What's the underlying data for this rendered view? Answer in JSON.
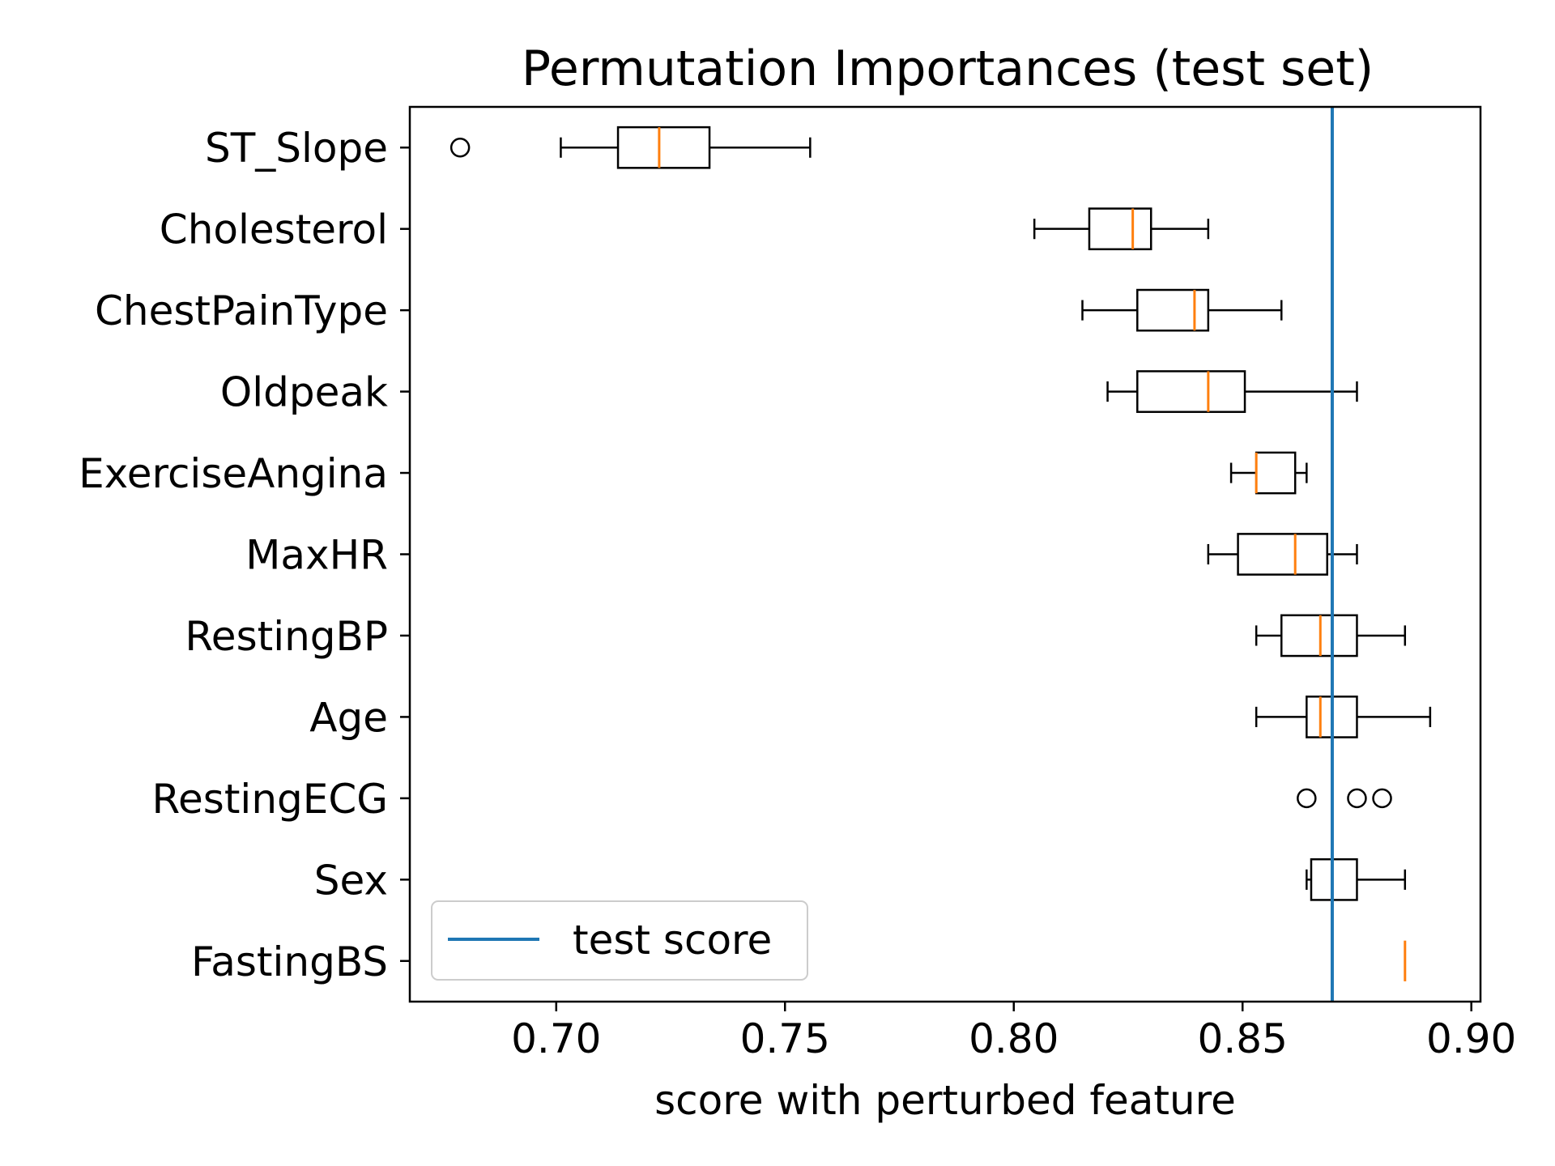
{
  "chart_data": {
    "type": "boxplot",
    "title": "Permutation Importances (test set)",
    "xlabel": "score with perturbed feature",
    "ylabel": "",
    "xlim": [
      0.668,
      0.902
    ],
    "xticks": [
      "0.70",
      "0.75",
      "0.80",
      "0.85",
      "0.90"
    ],
    "xtick_values": [
      0.7,
      0.75,
      0.8,
      0.85,
      0.9
    ],
    "grid": false,
    "legend": {
      "position": "lower-left",
      "entries": [
        "test score"
      ]
    },
    "reference_line": {
      "label": "test score",
      "value": 0.8696,
      "color": "#1f77b4"
    },
    "box_color": "#000000",
    "median_color": "#ff7f0e",
    "features": [
      {
        "name": "ST_Slope",
        "whisker_low": 0.701,
        "q1": 0.7135,
        "median": 0.7225,
        "q3": 0.7335,
        "whisker_high": 0.7555,
        "outliers": [
          0.679
        ]
      },
      {
        "name": "Cholesterol",
        "whisker_low": 0.8045,
        "q1": 0.8165,
        "median": 0.826,
        "q3": 0.83,
        "whisker_high": 0.8425,
        "outliers": []
      },
      {
        "name": "ChestPainType",
        "whisker_low": 0.815,
        "q1": 0.827,
        "median": 0.8395,
        "q3": 0.8425,
        "whisker_high": 0.8585,
        "outliers": []
      },
      {
        "name": "Oldpeak",
        "whisker_low": 0.8205,
        "q1": 0.827,
        "median": 0.8425,
        "q3": 0.8505,
        "whisker_high": 0.875,
        "outliers": []
      },
      {
        "name": "ExerciseAngina",
        "whisker_low": 0.8475,
        "q1": 0.853,
        "median": 0.853,
        "q3": 0.8615,
        "whisker_high": 0.864,
        "outliers": []
      },
      {
        "name": "MaxHR",
        "whisker_low": 0.8425,
        "q1": 0.849,
        "median": 0.8615,
        "q3": 0.8685,
        "whisker_high": 0.875,
        "outliers": []
      },
      {
        "name": "RestingBP",
        "whisker_low": 0.853,
        "q1": 0.8585,
        "median": 0.867,
        "q3": 0.875,
        "whisker_high": 0.8855,
        "outliers": []
      },
      {
        "name": "Age",
        "whisker_low": 0.853,
        "q1": 0.864,
        "median": 0.867,
        "q3": 0.875,
        "whisker_high": 0.891,
        "outliers": []
      },
      {
        "name": "RestingECG",
        "whisker_low": 0.8696,
        "q1": 0.8696,
        "median": 0.8696,
        "q3": 0.8696,
        "whisker_high": 0.8696,
        "outliers": [
          0.864,
          0.875,
          0.8805
        ]
      },
      {
        "name": "Sex",
        "whisker_low": 0.864,
        "q1": 0.865,
        "median": 0.8696,
        "q3": 0.875,
        "whisker_high": 0.8855,
        "outliers": []
      },
      {
        "name": "FastingBS",
        "whisker_low": 0.8855,
        "q1": 0.8855,
        "median": 0.8855,
        "q3": 0.8855,
        "whisker_high": 0.8855,
        "outliers": []
      }
    ]
  }
}
